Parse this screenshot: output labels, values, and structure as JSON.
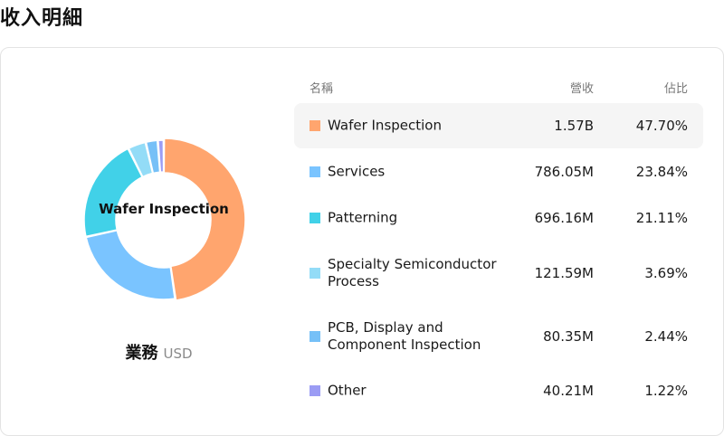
{
  "page": {
    "title": "收入明細"
  },
  "chart": {
    "center_label": "Wafer Inspection",
    "caption": "業務",
    "unit": "USD"
  },
  "table": {
    "headers": {
      "name": "名稱",
      "revenue": "營收",
      "share": "佔比"
    }
  },
  "chart_data": {
    "type": "pie",
    "categories": [
      "Wafer Inspection",
      "Services",
      "Patterning",
      "Specialty Semiconductor Process",
      "PCB, Display and Component Inspection",
      "Other"
    ],
    "values": [
      47.7,
      23.84,
      21.11,
      3.69,
      2.44,
      1.22
    ],
    "revenue_labels": [
      "1.57B",
      "786.05M",
      "696.16M",
      "121.59M",
      "80.35M",
      "40.21M"
    ],
    "share_labels": [
      "47.70%",
      "23.84%",
      "21.11%",
      "3.69%",
      "2.44%",
      "1.22%"
    ],
    "colors": [
      "#ffa56e",
      "#7ac4ff",
      "#41d1e8",
      "#93dcf7",
      "#76c0f7",
      "#9b9cf4"
    ],
    "highlighted": 0
  }
}
